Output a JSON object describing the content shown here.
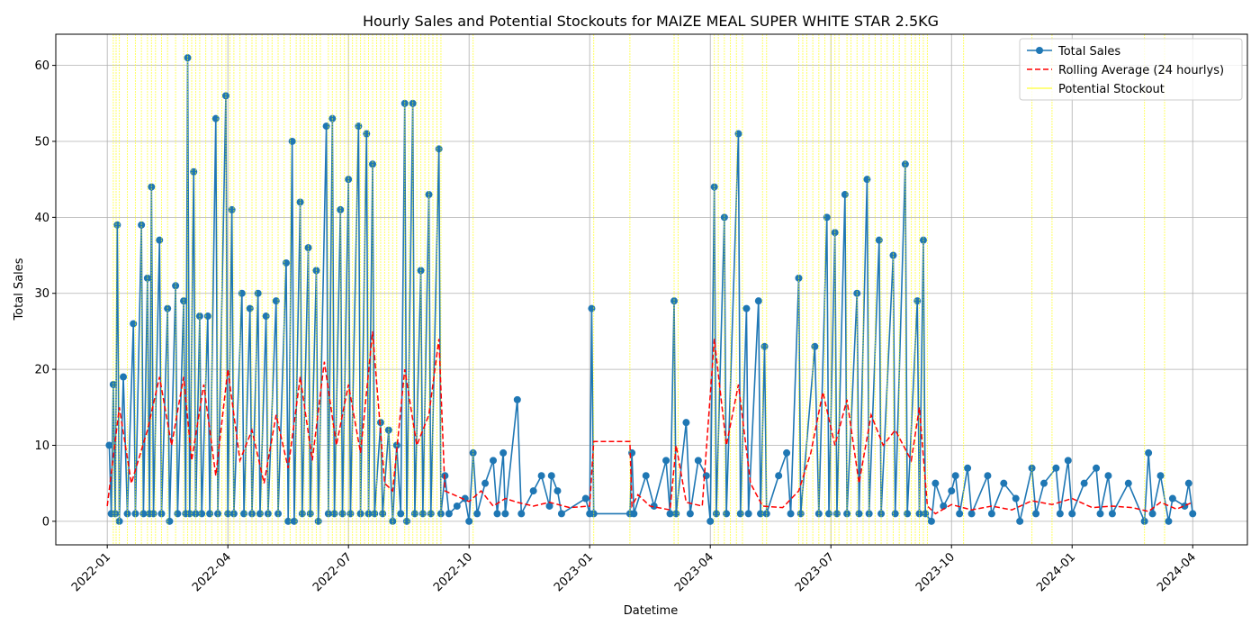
{
  "chart_data": {
    "type": "line",
    "title": "Hourly Sales and Potential Stockouts for MAIZE MEAL SUPER WHITE STAR 2.5KG",
    "x_label": "Datetime",
    "y_label": "Total Sales",
    "xlim": [
      -1.28,
      28.36
    ],
    "ylim": [
      -3.1,
      64.1
    ],
    "xticks": [
      {
        "value": 0,
        "label": "2022-01"
      },
      {
        "value": 3,
        "label": "2022-04"
      },
      {
        "value": 6,
        "label": "2022-07"
      },
      {
        "value": 9,
        "label": "2022-10"
      },
      {
        "value": 12,
        "label": "2023-01"
      },
      {
        "value": 15,
        "label": "2023-04"
      },
      {
        "value": 18,
        "label": "2023-07"
      },
      {
        "value": 21,
        "label": "2023-10"
      },
      {
        "value": 24,
        "label": "2024-01"
      },
      {
        "value": 27,
        "label": "2024-04"
      }
    ],
    "yticks": [
      0,
      10,
      20,
      30,
      40,
      50,
      60
    ],
    "grid": true,
    "legend": "upper right",
    "series": [
      {
        "name": "Total Sales",
        "color": "#1f77b4",
        "style": "line-marker",
        "x": [
          0.05,
          0.1,
          0.15,
          0.2,
          0.25,
          0.3,
          0.4,
          0.5,
          0.65,
          0.7,
          0.85,
          0.9,
          1.0,
          1.05,
          1.1,
          1.15,
          1.3,
          1.35,
          1.5,
          1.55,
          1.7,
          1.75,
          1.9,
          1.95,
          2.0,
          2.05,
          2.15,
          2.2,
          2.3,
          2.35,
          2.5,
          2.55,
          2.7,
          2.75,
          2.95,
          3.0,
          3.1,
          3.15,
          3.35,
          3.4,
          3.55,
          3.6,
          3.75,
          3.8,
          3.95,
          4.0,
          4.2,
          4.25,
          4.45,
          4.5,
          4.6,
          4.65,
          4.8,
          4.85,
          5.0,
          5.05,
          5.2,
          5.25,
          5.45,
          5.5,
          5.6,
          5.65,
          5.8,
          5.85,
          6.0,
          6.05,
          6.25,
          6.3,
          6.45,
          6.5,
          6.6,
          6.65,
          6.8,
          6.85,
          7.0,
          7.1,
          7.2,
          7.3,
          7.4,
          7.45,
          7.6,
          7.65,
          7.8,
          7.85,
          8.0,
          8.05,
          8.25,
          8.3,
          8.4,
          8.5,
          8.7,
          8.9,
          9.0,
          9.1,
          9.2,
          9.4,
          9.6,
          9.7,
          9.85,
          9.9,
          10.2,
          10.3,
          10.6,
          10.8,
          11.0,
          11.05,
          11.2,
          11.3,
          11.9,
          12.0,
          12.05,
          12.1,
          13.0,
          13.05,
          13.1,
          13.4,
          13.6,
          13.9,
          14.0,
          14.1,
          14.15,
          14.4,
          14.5,
          14.7,
          14.9,
          15.0,
          15.1,
          15.15,
          15.35,
          15.4,
          15.7,
          15.75,
          15.9,
          15.95,
          16.2,
          16.25,
          16.35,
          16.4,
          16.7,
          16.9,
          17.0,
          17.2,
          17.25,
          17.6,
          17.7,
          17.9,
          17.95,
          18.1,
          18.15,
          18.35,
          18.4,
          18.65,
          18.7,
          18.9,
          18.95,
          19.2,
          19.25,
          19.55,
          19.6,
          19.85,
          19.9,
          20.15,
          20.2,
          20.3,
          20.35,
          20.5,
          20.6,
          20.8,
          21.0,
          21.1,
          21.2,
          21.4,
          21.5,
          21.9,
          22.0,
          22.3,
          22.6,
          22.7,
          23.0,
          23.1,
          23.3,
          23.6,
          23.7,
          23.9,
          24.0,
          24.3,
          24.6,
          24.7,
          24.9,
          25.0,
          25.4,
          25.8,
          25.9,
          26.0,
          26.2,
          26.4,
          26.5,
          26.8,
          26.9,
          27.0
        ],
        "values": [
          10,
          1,
          18,
          1,
          39,
          0,
          19,
          1,
          26,
          1,
          39,
          1,
          32,
          1,
          44,
          1,
          37,
          1,
          28,
          0,
          31,
          1,
          29,
          1,
          61,
          1,
          46,
          1,
          27,
          1,
          27,
          1,
          53,
          1,
          56,
          1,
          41,
          1,
          30,
          1,
          28,
          1,
          30,
          1,
          27,
          1,
          29,
          1,
          34,
          0,
          50,
          0,
          42,
          1,
          36,
          1,
          33,
          0,
          52,
          1,
          53,
          1,
          41,
          1,
          45,
          1,
          52,
          1,
          51,
          1,
          47,
          1,
          13,
          1,
          12,
          0,
          10,
          1,
          55,
          0,
          55,
          1,
          33,
          1,
          43,
          1,
          49,
          1,
          6,
          1,
          2,
          3,
          0,
          9,
          1,
          5,
          8,
          1,
          9,
          1,
          16,
          1,
          4,
          6,
          2,
          6,
          4,
          1,
          3,
          1,
          28,
          1,
          1,
          9,
          1,
          6,
          2,
          8,
          1,
          29,
          1,
          13,
          1,
          8,
          6,
          0,
          44,
          1,
          40,
          1,
          51,
          1,
          28,
          1,
          29,
          1,
          23,
          1,
          6,
          9,
          1,
          32,
          1,
          23,
          1,
          40,
          1,
          38,
          1,
          43,
          1,
          30,
          1,
          45,
          1,
          37,
          1,
          35,
          1,
          47,
          1,
          29,
          1,
          37,
          1,
          0,
          5,
          2,
          4,
          6,
          1,
          7,
          1,
          6,
          1,
          5,
          3,
          0,
          7,
          1,
          5,
          7,
          1,
          8,
          1,
          5,
          7,
          1,
          6,
          1,
          5,
          0,
          9,
          1,
          6,
          0,
          3,
          2,
          5,
          1
        ]
      },
      {
        "name": "Rolling Average (24 hourlys)",
        "color": "#ff0000",
        "style": "dashed",
        "x": [
          0,
          0.3,
          0.6,
          1.0,
          1.3,
          1.6,
          1.9,
          2.1,
          2.4,
          2.7,
          3.0,
          3.3,
          3.6,
          3.9,
          4.2,
          4.5,
          4.8,
          5.1,
          5.4,
          5.7,
          6.0,
          6.3,
          6.6,
          6.9,
          7.1,
          7.4,
          7.7,
          8.0,
          8.25,
          8.4,
          8.7,
          9.0,
          9.3,
          9.6,
          9.9,
          10.2,
          10.6,
          11.0,
          11.5,
          12.0,
          12.1,
          13.0,
          13.05,
          13.2,
          13.5,
          14.0,
          14.15,
          14.4,
          14.8,
          15.1,
          15.4,
          15.7,
          16.0,
          16.3,
          16.8,
          17.2,
          17.5,
          17.8,
          18.1,
          18.4,
          18.7,
          19.0,
          19.3,
          19.6,
          20.0,
          20.2,
          20.4,
          20.6,
          21.0,
          21.5,
          22.0,
          22.5,
          23.0,
          23.5,
          24.0,
          24.5,
          25.0,
          25.5,
          25.9,
          26.2,
          26.6,
          27.0
        ],
        "values": [
          2,
          15,
          5,
          12,
          19,
          10,
          19,
          8,
          18,
          6,
          20,
          8,
          12,
          5,
          14,
          7,
          19,
          8,
          21,
          10,
          18,
          9,
          25,
          5,
          4,
          20,
          10,
          14,
          24,
          4,
          3.3,
          2.6,
          4,
          2,
          3,
          2.5,
          2,
          2.5,
          1.8,
          2,
          10.5,
          10.5,
          2,
          3.5,
          2,
          1.5,
          10,
          2.5,
          2,
          24,
          10,
          18,
          5,
          2,
          1.8,
          4,
          9,
          17,
          10,
          16,
          5,
          14,
          10,
          12,
          8,
          15,
          2,
          1,
          2.2,
          1.5,
          2,
          1.5,
          2.7,
          2.2,
          3,
          1.8,
          2,
          1.8,
          1.3,
          2.5,
          1.6,
          2.5
        ]
      },
      {
        "name": "Potential Stockout",
        "color": "#ffff00",
        "style": "vline",
        "x": [
          0.15,
          0.22,
          0.3,
          0.5,
          0.7,
          0.85,
          1.0,
          1.1,
          1.2,
          1.35,
          1.5,
          1.7,
          1.9,
          2.0,
          2.1,
          2.2,
          2.3,
          2.45,
          2.6,
          2.75,
          2.85,
          2.95,
          3.05,
          3.15,
          3.3,
          3.45,
          3.6,
          3.7,
          3.85,
          4.0,
          4.1,
          4.25,
          4.4,
          4.55,
          4.7,
          4.8,
          4.9,
          5.0,
          5.1,
          5.2,
          5.3,
          5.5,
          5.6,
          5.7,
          5.8,
          5.9,
          6.0,
          6.1,
          6.2,
          6.3,
          6.4,
          6.5,
          6.6,
          6.7,
          6.8,
          6.9,
          7.0,
          7.1,
          7.2,
          7.4,
          7.5,
          7.6,
          7.7,
          7.8,
          7.9,
          8.0,
          8.1,
          8.2,
          8.3,
          9.1,
          12.1,
          13.0,
          14.1,
          14.2,
          15.1,
          15.2,
          15.35,
          15.5,
          15.65,
          15.8,
          16.3,
          16.4,
          17.2,
          17.3,
          17.4,
          17.55,
          17.7,
          17.85,
          18.0,
          18.1,
          18.2,
          18.4,
          18.5,
          18.65,
          18.8,
          18.95,
          19.1,
          19.25,
          19.4,
          19.55,
          19.7,
          19.85,
          20.0,
          20.1,
          20.2,
          20.3,
          20.4,
          21.3,
          23.0,
          23.5,
          25.8,
          26.3
        ]
      }
    ]
  }
}
